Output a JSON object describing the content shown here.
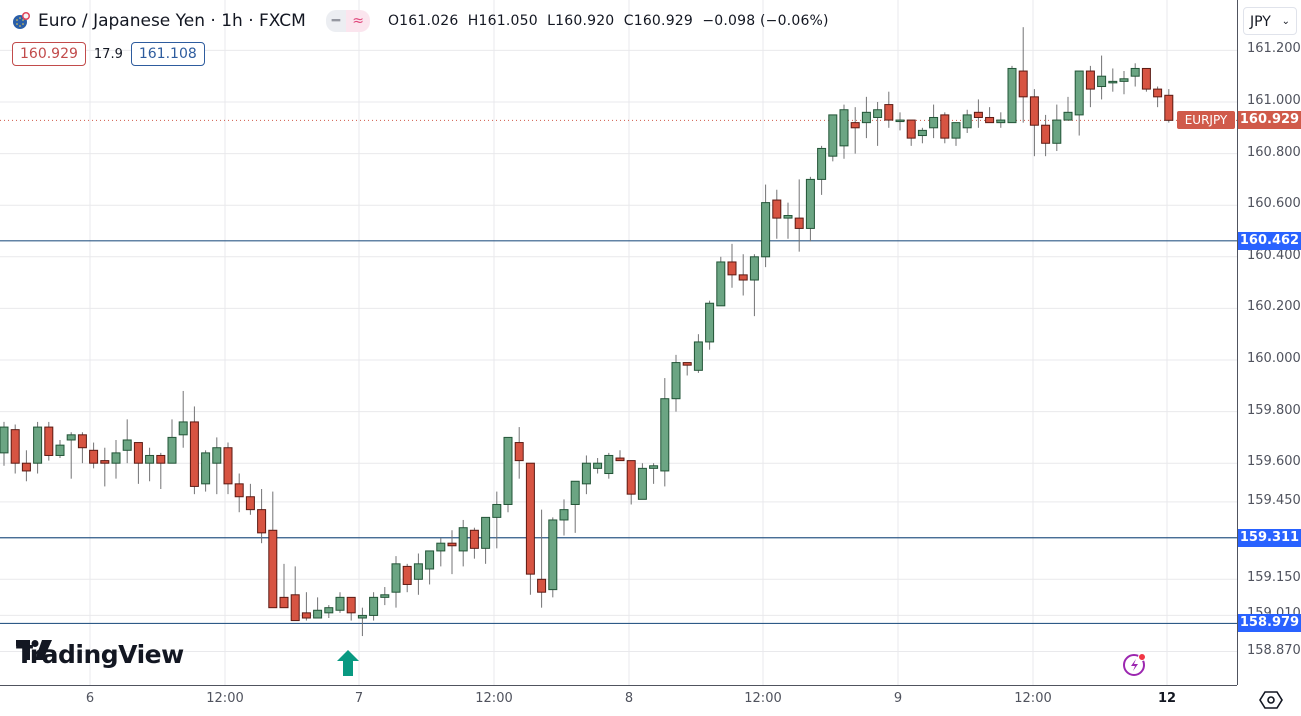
{
  "header": {
    "symbol_title": "Euro / Japanese Yen · 1h · FXCM",
    "symbol_icon": "eu-flag-icon",
    "pill_left_icon": "minus-icon",
    "pill_right_icon": "approx-icon",
    "pill_left_glyph": "━",
    "pill_right_glyph": "≈",
    "ohlc": {
      "o_label": "O",
      "o": "161.026",
      "h_label": "H",
      "h": "161.050",
      "l_label": "L",
      "l": "160.920",
      "c_label": "C",
      "c": "160.929",
      "change": "−0.098 (−0.06%)"
    },
    "sell_price": "160.929",
    "spread": "17.9",
    "buy_price": "161.108"
  },
  "axis": {
    "currency": "JPY",
    "currency_chevron": "⌄",
    "settings_icon": "settings-hexagon-icon"
  },
  "branding": {
    "logo_text": "TradingView"
  },
  "colors": {
    "up": "#6ba583",
    "up_border": "#225437",
    "down": "#d75442",
    "down_border": "#5b1a13",
    "wick": "#737375",
    "grid": "#e9e9ec",
    "hline": "#2e5a87",
    "hline_label": "#2962ff",
    "last_price": "#d05a4a",
    "signal_arrow": "#089981"
  },
  "chart_data": {
    "type": "candlestick",
    "title": "Euro / Japanese Yen · 1h · FXCM",
    "symbol": "EURJPY",
    "timeframe": "1h",
    "ylabel": "JPY",
    "ylim": [
      158.8,
      161.38
    ],
    "y_ticks": [
      "161.200",
      "161.000",
      "160.800",
      "160.600",
      "160.400",
      "160.200",
      "160.000",
      "159.800",
      "159.600",
      "159.450",
      "159.150",
      "159.010",
      "158.870"
    ],
    "y_tick_values": [
      161.2,
      161.0,
      160.8,
      160.6,
      160.4,
      160.2,
      160.0,
      159.8,
      159.6,
      159.45,
      159.15,
      159.01,
      158.87
    ],
    "x_ticks": [
      {
        "label": "6",
        "x": 90
      },
      {
        "label": "12:00",
        "x": 225
      },
      {
        "label": "7",
        "x": 359
      },
      {
        "label": "12:00",
        "x": 494
      },
      {
        "label": "8",
        "x": 629
      },
      {
        "label": "12:00",
        "x": 763
      },
      {
        "label": "9",
        "x": 898
      },
      {
        "label": "12:00",
        "x": 1033
      },
      {
        "label": "12",
        "x": 1167,
        "bold": true
      }
    ],
    "horizontal_lines": [
      {
        "price": 160.462,
        "label": "160.462"
      },
      {
        "price": 159.311,
        "label": "159.311"
      },
      {
        "price": 158.979,
        "label": "158.979"
      }
    ],
    "last_price": {
      "price": 160.929,
      "label": "160.929",
      "symbol_label": "EURJPY"
    },
    "signal_arrow": {
      "direction": "up",
      "x": 348
    },
    "candles": [
      {
        "o": 159.64,
        "h": 159.76,
        "l": 159.59,
        "c": 159.74
      },
      {
        "o": 159.73,
        "h": 159.75,
        "l": 159.56,
        "c": 159.6
      },
      {
        "o": 159.6,
        "h": 159.65,
        "l": 159.53,
        "c": 159.57
      },
      {
        "o": 159.6,
        "h": 159.76,
        "l": 159.56,
        "c": 159.74
      },
      {
        "o": 159.74,
        "h": 159.76,
        "l": 159.61,
        "c": 159.63
      },
      {
        "o": 159.63,
        "h": 159.69,
        "l": 159.62,
        "c": 159.67
      },
      {
        "o": 159.69,
        "h": 159.72,
        "l": 159.54,
        "c": 159.71
      },
      {
        "o": 159.71,
        "h": 159.72,
        "l": 159.6,
        "c": 159.66
      },
      {
        "o": 159.65,
        "h": 159.68,
        "l": 159.58,
        "c": 159.6
      },
      {
        "o": 159.61,
        "h": 159.66,
        "l": 159.51,
        "c": 159.6
      },
      {
        "o": 159.6,
        "h": 159.69,
        "l": 159.54,
        "c": 159.64
      },
      {
        "o": 159.65,
        "h": 159.77,
        "l": 159.6,
        "c": 159.69
      },
      {
        "o": 159.68,
        "h": 159.68,
        "l": 159.52,
        "c": 159.6
      },
      {
        "o": 159.6,
        "h": 159.66,
        "l": 159.53,
        "c": 159.63
      },
      {
        "o": 159.63,
        "h": 159.64,
        "l": 159.5,
        "c": 159.6
      },
      {
        "o": 159.6,
        "h": 159.77,
        "l": 159.6,
        "c": 159.7
      },
      {
        "o": 159.71,
        "h": 159.88,
        "l": 159.66,
        "c": 159.76
      },
      {
        "o": 159.76,
        "h": 159.82,
        "l": 159.48,
        "c": 159.51
      },
      {
        "o": 159.52,
        "h": 159.65,
        "l": 159.49,
        "c": 159.64
      },
      {
        "o": 159.6,
        "h": 159.7,
        "l": 159.48,
        "c": 159.66
      },
      {
        "o": 159.66,
        "h": 159.68,
        "l": 159.48,
        "c": 159.52
      },
      {
        "o": 159.52,
        "h": 159.56,
        "l": 159.41,
        "c": 159.47
      },
      {
        "o": 159.47,
        "h": 159.52,
        "l": 159.4,
        "c": 159.42
      },
      {
        "o": 159.42,
        "h": 159.5,
        "l": 159.29,
        "c": 159.33
      },
      {
        "o": 159.34,
        "h": 159.49,
        "l": 159.1,
        "c": 159.04
      },
      {
        "o": 159.08,
        "h": 159.21,
        "l": 159.07,
        "c": 159.04
      },
      {
        "o": 159.09,
        "h": 159.2,
        "l": 158.99,
        "c": 158.99
      },
      {
        "o": 159.02,
        "h": 159.1,
        "l": 158.99,
        "c": 159.0
      },
      {
        "o": 159.0,
        "h": 159.08,
        "l": 159.0,
        "c": 159.03
      },
      {
        "o": 159.02,
        "h": 159.05,
        "l": 159.0,
        "c": 159.04
      },
      {
        "o": 159.03,
        "h": 159.1,
        "l": 159.02,
        "c": 159.08
      },
      {
        "o": 159.08,
        "h": 159.08,
        "l": 158.99,
        "c": 159.02
      },
      {
        "o": 159.0,
        "h": 159.04,
        "l": 158.93,
        "c": 159.01
      },
      {
        "o": 159.01,
        "h": 159.1,
        "l": 158.99,
        "c": 159.08
      },
      {
        "o": 159.08,
        "h": 159.12,
        "l": 159.05,
        "c": 159.09
      },
      {
        "o": 159.1,
        "h": 159.24,
        "l": 159.04,
        "c": 159.21
      },
      {
        "o": 159.2,
        "h": 159.21,
        "l": 159.1,
        "c": 159.13
      },
      {
        "o": 159.15,
        "h": 159.25,
        "l": 159.09,
        "c": 159.21
      },
      {
        "o": 159.19,
        "h": 159.23,
        "l": 159.13,
        "c": 159.26
      },
      {
        "o": 159.26,
        "h": 159.31,
        "l": 159.2,
        "c": 159.29
      },
      {
        "o": 159.29,
        "h": 159.34,
        "l": 159.17,
        "c": 159.28
      },
      {
        "o": 159.26,
        "h": 159.38,
        "l": 159.2,
        "c": 159.35
      },
      {
        "o": 159.34,
        "h": 159.35,
        "l": 159.23,
        "c": 159.27
      },
      {
        "o": 159.27,
        "h": 159.39,
        "l": 159.21,
        "c": 159.39
      },
      {
        "o": 159.39,
        "h": 159.49,
        "l": 159.27,
        "c": 159.44
      },
      {
        "o": 159.44,
        "h": 159.7,
        "l": 159.41,
        "c": 159.7
      },
      {
        "o": 159.68,
        "h": 159.74,
        "l": 159.54,
        "c": 159.61
      },
      {
        "o": 159.6,
        "h": 159.56,
        "l": 159.09,
        "c": 159.17
      },
      {
        "o": 159.15,
        "h": 159.42,
        "l": 159.04,
        "c": 159.1
      },
      {
        "o": 159.11,
        "h": 159.39,
        "l": 159.08,
        "c": 159.38
      },
      {
        "o": 159.38,
        "h": 159.46,
        "l": 159.32,
        "c": 159.42
      },
      {
        "o": 159.44,
        "h": 159.52,
        "l": 159.33,
        "c": 159.53
      },
      {
        "o": 159.52,
        "h": 159.63,
        "l": 159.48,
        "c": 159.6
      },
      {
        "o": 159.58,
        "h": 159.62,
        "l": 159.56,
        "c": 159.6
      },
      {
        "o": 159.56,
        "h": 159.64,
        "l": 159.54,
        "c": 159.63
      },
      {
        "o": 159.62,
        "h": 159.65,
        "l": 159.61,
        "c": 159.61
      },
      {
        "o": 159.61,
        "h": 159.61,
        "l": 159.44,
        "c": 159.48
      },
      {
        "o": 159.46,
        "h": 159.6,
        "l": 159.46,
        "c": 159.58
      },
      {
        "o": 159.58,
        "h": 159.6,
        "l": 159.52,
        "c": 159.59
      },
      {
        "o": 159.57,
        "h": 159.93,
        "l": 159.51,
        "c": 159.85
      },
      {
        "o": 159.85,
        "h": 160.02,
        "l": 159.8,
        "c": 159.99
      },
      {
        "o": 159.99,
        "h": 159.99,
        "l": 159.94,
        "c": 159.98
      },
      {
        "o": 159.96,
        "h": 160.1,
        "l": 159.95,
        "c": 160.07
      },
      {
        "o": 160.07,
        "h": 160.23,
        "l": 160.04,
        "c": 160.22
      },
      {
        "o": 160.21,
        "h": 160.4,
        "l": 160.22,
        "c": 160.38
      },
      {
        "o": 160.38,
        "h": 160.45,
        "l": 160.28,
        "c": 160.33
      },
      {
        "o": 160.33,
        "h": 160.41,
        "l": 160.25,
        "c": 160.31
      },
      {
        "o": 160.31,
        "h": 160.41,
        "l": 160.17,
        "c": 160.4
      },
      {
        "o": 160.4,
        "h": 160.68,
        "l": 160.36,
        "c": 160.61
      },
      {
        "o": 160.62,
        "h": 160.66,
        "l": 160.47,
        "c": 160.55
      },
      {
        "o": 160.55,
        "h": 160.61,
        "l": 160.47,
        "c": 160.56
      },
      {
        "o": 160.55,
        "h": 160.7,
        "l": 160.42,
        "c": 160.51
      },
      {
        "o": 160.51,
        "h": 160.71,
        "l": 160.46,
        "c": 160.7
      },
      {
        "o": 160.7,
        "h": 160.83,
        "l": 160.64,
        "c": 160.82
      },
      {
        "o": 160.79,
        "h": 160.94,
        "l": 160.77,
        "c": 160.95
      },
      {
        "o": 160.83,
        "h": 160.99,
        "l": 160.78,
        "c": 160.97
      },
      {
        "o": 160.92,
        "h": 160.98,
        "l": 160.8,
        "c": 160.9
      },
      {
        "o": 160.92,
        "h": 161.02,
        "l": 160.86,
        "c": 160.96
      },
      {
        "o": 160.94,
        "h": 161.0,
        "l": 160.83,
        "c": 160.97
      },
      {
        "o": 160.99,
        "h": 161.04,
        "l": 160.9,
        "c": 160.93
      },
      {
        "o": 160.93,
        "h": 160.96,
        "l": 160.89,
        "c": 160.93
      },
      {
        "o": 160.93,
        "h": 160.93,
        "l": 160.83,
        "c": 160.86
      },
      {
        "o": 160.87,
        "h": 160.9,
        "l": 160.84,
        "c": 160.89
      },
      {
        "o": 160.9,
        "h": 160.99,
        "l": 160.86,
        "c": 160.94
      },
      {
        "o": 160.95,
        "h": 160.96,
        "l": 160.84,
        "c": 160.86
      },
      {
        "o": 160.86,
        "h": 160.92,
        "l": 160.83,
        "c": 160.92
      },
      {
        "o": 160.9,
        "h": 160.97,
        "l": 160.88,
        "c": 160.95
      },
      {
        "o": 160.96,
        "h": 161.01,
        "l": 160.9,
        "c": 160.94
      },
      {
        "o": 160.94,
        "h": 160.98,
        "l": 160.92,
        "c": 160.92
      },
      {
        "o": 160.92,
        "h": 160.96,
        "l": 160.9,
        "c": 160.93
      },
      {
        "o": 160.92,
        "h": 161.14,
        "l": 160.94,
        "c": 161.13
      },
      {
        "o": 161.12,
        "h": 161.29,
        "l": 160.92,
        "c": 161.02
      },
      {
        "o": 161.02,
        "h": 161.05,
        "l": 160.79,
        "c": 160.91
      },
      {
        "o": 160.91,
        "h": 160.95,
        "l": 160.79,
        "c": 160.84
      },
      {
        "o": 160.84,
        "h": 160.99,
        "l": 160.81,
        "c": 160.93
      },
      {
        "o": 160.93,
        "h": 161.02,
        "l": 160.94,
        "c": 160.96
      },
      {
        "o": 160.95,
        "h": 161.1,
        "l": 160.87,
        "c": 161.12
      },
      {
        "o": 161.12,
        "h": 161.14,
        "l": 160.98,
        "c": 161.05
      },
      {
        "o": 161.06,
        "h": 161.18,
        "l": 161.01,
        "c": 161.1
      },
      {
        "o": 161.08,
        "h": 161.13,
        "l": 161.04,
        "c": 161.08
      },
      {
        "o": 161.08,
        "h": 161.12,
        "l": 161.03,
        "c": 161.09
      },
      {
        "o": 161.1,
        "h": 161.15,
        "l": 161.06,
        "c": 161.13
      },
      {
        "o": 161.13,
        "h": 161.13,
        "l": 161.04,
        "c": 161.05
      },
      {
        "o": 161.05,
        "h": 161.06,
        "l": 160.98,
        "c": 161.02
      },
      {
        "o": 161.026,
        "h": 161.05,
        "l": 160.92,
        "c": 160.929
      }
    ]
  }
}
